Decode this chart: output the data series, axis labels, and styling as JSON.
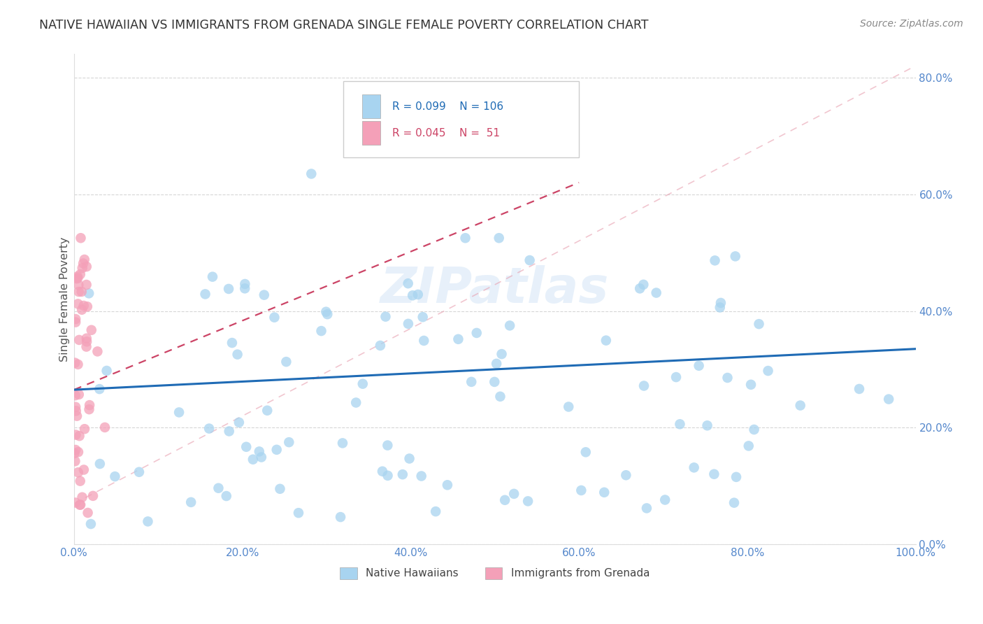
{
  "title": "NATIVE HAWAIIAN VS IMMIGRANTS FROM GRENADA SINGLE FEMALE POVERTY CORRELATION CHART",
  "source": "Source: ZipAtlas.com",
  "ylabel": "Single Female Poverty",
  "xlim": [
    0.0,
    1.0
  ],
  "ylim": [
    0.0,
    0.84
  ],
  "x_ticks": [
    0.0,
    0.2,
    0.4,
    0.6,
    0.8,
    1.0
  ],
  "x_tick_labels": [
    "0.0%",
    "20.0%",
    "40.0%",
    "60.0%",
    "80.0%",
    "100.0%"
  ],
  "y_ticks": [
    0.0,
    0.2,
    0.4,
    0.6,
    0.8
  ],
  "y_tick_labels": [
    "0.0%",
    "20.0%",
    "40.0%",
    "60.0%",
    "80.0%"
  ],
  "legend_labels": [
    "Native Hawaiians",
    "Immigrants from Grenada"
  ],
  "blue_color": "#A8D4F0",
  "pink_color": "#F4A0B8",
  "blue_line_color": "#1F6BB5",
  "pink_line_color": "#CC4466",
  "R_blue": 0.099,
  "N_blue": 106,
  "R_pink": 0.045,
  "N_pink": 51,
  "watermark": "ZIPatlas",
  "blue_line_x0": 0.0,
  "blue_line_y0": 0.265,
  "blue_line_x1": 1.0,
  "blue_line_y1": 0.335,
  "pink_line_x0": 0.0,
  "pink_line_y0": 0.265,
  "pink_line_x1": 0.6,
  "pink_line_y1": 0.62,
  "dash_line_x0": 0.0,
  "dash_line_y0": 0.07,
  "dash_line_x1": 1.0,
  "dash_line_y1": 0.82
}
